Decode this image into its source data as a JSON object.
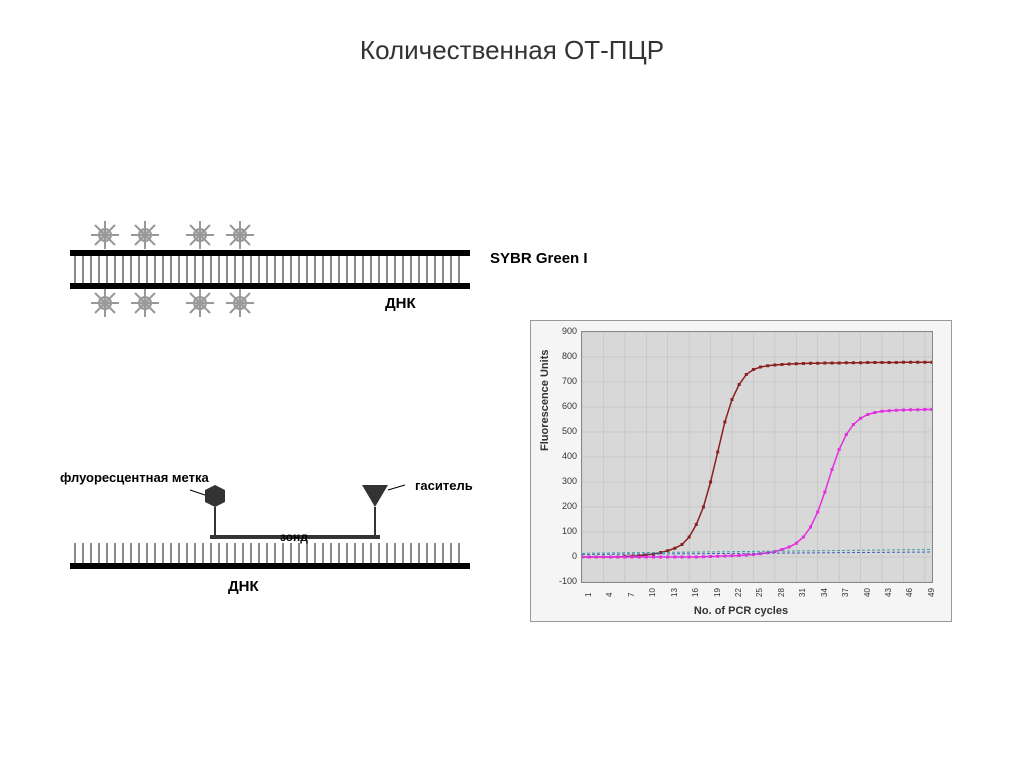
{
  "title": "Количественная ОТ-ПЦР",
  "sybr_diagram": {
    "label_sybr": "SYBR Green I",
    "label_dna": "ДНК",
    "strand_color": "#000000",
    "tooth_color": "#888888",
    "star_color": "#999999"
  },
  "probe_diagram": {
    "label_fluor": "флуоресцентная метка",
    "label_quencher": "гаситель",
    "label_probe": "зонд",
    "label_dna": "ДНК",
    "strand_color": "#000000",
    "tooth_color": "#888888",
    "hex_color": "#333333",
    "tri_color": "#333333"
  },
  "chart": {
    "type": "line",
    "ylabel": "Fluorescence Units",
    "xlabel": "No. of PCR cycles",
    "ylim": [
      -100,
      900
    ],
    "ytick_step": 100,
    "yticks": [
      -100,
      0,
      100,
      200,
      300,
      400,
      500,
      600,
      700,
      800,
      900
    ],
    "xlim": [
      1,
      50
    ],
    "xticks": [
      1,
      4,
      7,
      10,
      13,
      16,
      19,
      22,
      25,
      28,
      31,
      34,
      37,
      40,
      43,
      46,
      49
    ],
    "background_color": "#f5f5f5",
    "plot_bg": "#d8d8d8",
    "grid_color": "#bbbbbb",
    "series": [
      {
        "name": "curve_red",
        "color": "#8b2020",
        "marker": "square",
        "marker_size": 3,
        "line_width": 1.5,
        "x": [
          1,
          2,
          3,
          4,
          5,
          6,
          7,
          8,
          9,
          10,
          11,
          12,
          13,
          14,
          15,
          16,
          17,
          18,
          19,
          20,
          21,
          22,
          23,
          24,
          25,
          26,
          27,
          28,
          29,
          30,
          31,
          32,
          33,
          34,
          35,
          36,
          37,
          38,
          39,
          40,
          41,
          42,
          43,
          44,
          45,
          46,
          47,
          48,
          49,
          50
        ],
        "y": [
          0,
          0,
          0,
          0,
          0,
          0,
          2,
          3,
          5,
          8,
          12,
          18,
          25,
          35,
          50,
          80,
          130,
          200,
          300,
          420,
          540,
          630,
          690,
          730,
          750,
          760,
          765,
          768,
          770,
          772,
          773,
          774,
          775,
          775,
          776,
          776,
          776,
          777,
          777,
          777,
          778,
          778,
          778,
          778,
          778,
          779,
          779,
          779,
          779,
          779
        ]
      },
      {
        "name": "curve_magenta",
        "color": "#e030e0",
        "marker": "square",
        "marker_size": 3,
        "line_width": 1.5,
        "x": [
          1,
          2,
          3,
          4,
          5,
          6,
          7,
          8,
          9,
          10,
          11,
          12,
          13,
          14,
          15,
          16,
          17,
          18,
          19,
          20,
          21,
          22,
          23,
          24,
          25,
          26,
          27,
          28,
          29,
          30,
          31,
          32,
          33,
          34,
          35,
          36,
          37,
          38,
          39,
          40,
          41,
          42,
          43,
          44,
          45,
          46,
          47,
          48,
          49,
          50
        ],
        "y": [
          0,
          0,
          0,
          0,
          0,
          0,
          0,
          0,
          0,
          0,
          0,
          0,
          0,
          0,
          0,
          0,
          0,
          1,
          2,
          3,
          4,
          5,
          6,
          8,
          10,
          13,
          17,
          22,
          30,
          40,
          55,
          80,
          120,
          180,
          260,
          350,
          430,
          490,
          530,
          555,
          570,
          578,
          583,
          585,
          587,
          588,
          589,
          589,
          590,
          590
        ]
      },
      {
        "name": "curve_teal",
        "color": "#40a0a0",
        "marker": "none",
        "line_width": 1,
        "dash": "3,2",
        "x": [
          1,
          50
        ],
        "y": [
          15,
          30
        ]
      },
      {
        "name": "curve_blue",
        "color": "#4060c0",
        "marker": "none",
        "line_width": 1,
        "dash": "3,2",
        "x": [
          1,
          50
        ],
        "y": [
          10,
          20
        ]
      }
    ]
  }
}
